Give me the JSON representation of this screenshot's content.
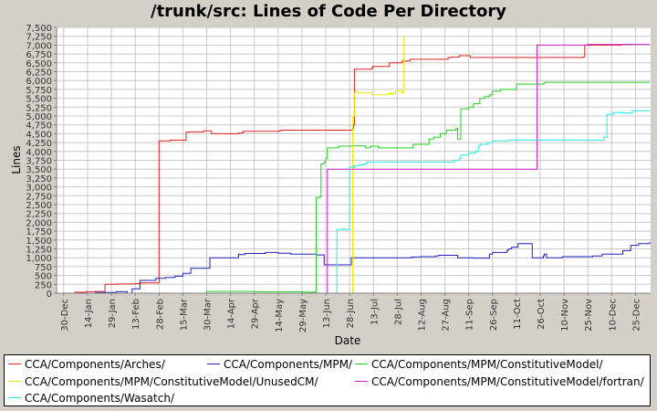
{
  "chart_data": {
    "type": "line",
    "title": "/trunk/src: Lines of Code Per Directory",
    "xlabel": "Date",
    "ylabel": "Lines",
    "ylim": [
      0,
      7500
    ],
    "yticks": [
      "0",
      "250",
      "500",
      "750",
      "1,000",
      "1,250",
      "1,500",
      "1,750",
      "2,000",
      "2,250",
      "2,500",
      "2,750",
      "3,000",
      "3,250",
      "3,500",
      "3,750",
      "4,000",
      "4,250",
      "4,500",
      "4,750",
      "5,000",
      "5,250",
      "5,500",
      "5,750",
      "6,000",
      "6,250",
      "6,500",
      "6,750",
      "7,000",
      "7,250",
      "7,500"
    ],
    "xticks": [
      "30-Dec",
      "14-Jan",
      "29-Jan",
      "13-Feb",
      "28-Feb",
      "15-Mar",
      "30-Mar",
      "14-Apr",
      "29-Apr",
      "14-May",
      "29-May",
      "13-Jun",
      "28-Jun",
      "13-Jul",
      "28-Jul",
      "12-Aug",
      "27-Aug",
      "11-Sep",
      "26-Sep",
      "11-Oct",
      "26-Oct",
      "10-Nov",
      "25-Nov",
      "10-Dec",
      "25-Dec"
    ],
    "xlim_days": [
      -4.5,
      369.5
    ],
    "grid": true,
    "legend_position": "bottom",
    "series": [
      {
        "name": "CCA/Components/Arches/",
        "color": "#e02020",
        "x": [
          0,
          7,
          14,
          20,
          26,
          34,
          45,
          48,
          60,
          67,
          76,
          77,
          78,
          88,
          93,
          110,
          113,
          136,
          137,
          182,
          182.5,
          183,
          194,
          194.5,
          205,
          213,
          218,
          242,
          244,
          249,
          256,
          327,
          328,
          351,
          358
        ],
        "y": [
          0,
          25,
          40,
          50,
          250,
          260,
          270,
          290,
          4300,
          4320,
          4310,
          4540,
          4550,
          4580,
          4500,
          4520,
          4570,
          4590,
          4600,
          4650,
          4750,
          6320,
          6350,
          6400,
          6500,
          6550,
          6600,
          6650,
          6660,
          6700,
          6650,
          6670,
          7000,
          7020,
          7020
        ]
      },
      {
        "name": "CCA/Components/MPM/",
        "color": "#2020c0",
        "x": [
          11,
          20,
          33,
          40,
          43,
          48,
          58,
          64,
          70,
          75,
          80,
          92,
          110,
          111,
          114,
          127,
          135,
          143,
          159,
          164,
          181,
          195,
          219,
          225,
          234,
          236,
          248,
          258,
          268,
          270,
          279,
          280,
          282,
          286,
          295,
          302,
          302.5,
          304,
          314,
          333,
          339,
          352,
          357,
          362,
          369
        ],
        "y": [
          0,
          20,
          40,
          0,
          120,
          360,
          420,
          440,
          480,
          560,
          700,
          1000,
          1100,
          1090,
          1120,
          1150,
          1130,
          1100,
          1080,
          800,
          1000,
          1000,
          1020,
          1030,
          1050,
          1070,
          1000,
          990,
          1100,
          1150,
          1200,
          1250,
          1300,
          1400,
          1000,
          1050,
          1100,
          1000,
          1030,
          1050,
          1100,
          1200,
          1350,
          1400,
          1450
        ]
      },
      {
        "name": "CCA/Components/MPM/ConstitutiveModel/",
        "color": "#20d020",
        "x": [
          60,
          90,
          120,
          150,
          155,
          157,
          159,
          161,
          162,
          164,
          165,
          166,
          173,
          182,
          190,
          193,
          198,
          220,
          230,
          233,
          237,
          241,
          247,
          248,
          250,
          255,
          258,
          262,
          265,
          268,
          270,
          275,
          285,
          302,
          303,
          320,
          369
        ],
        "y": [
          0,
          50,
          40,
          30,
          20,
          30,
          2700,
          2720,
          3650,
          3700,
          3800,
          4100,
          4150,
          4160,
          4100,
          4150,
          4100,
          4200,
          4350,
          4400,
          4500,
          4600,
          4650,
          4350,
          5200,
          5250,
          5350,
          5500,
          5550,
          5600,
          5700,
          5750,
          5900,
          5920,
          5950,
          5950,
          5950
        ]
      },
      {
        "name": "CCA/Components/MPM/ConstitutiveModel/UnusedCM/",
        "color": "#e8e800",
        "x": [
          181,
          182,
          183,
          183.5,
          185,
          194,
          204,
          205,
          206,
          207,
          208,
          209,
          213,
          214
        ],
        "y": [
          0,
          5000,
          5650,
          5700,
          5650,
          5600,
          5620,
          5650,
          5600,
          5640,
          5650,
          5700,
          5650,
          7250
        ]
      },
      {
        "name": "CCA/Components/MPM/ConstitutiveModel/fortran/",
        "color": "#d020d0",
        "x": [
          165,
          166,
          250,
          297,
          298,
          330,
          369
        ],
        "y": [
          0,
          3500,
          3500,
          3500,
          7000,
          7020,
          7020
        ]
      },
      {
        "name": "CCA/Components/Wasatch/",
        "color": "#20e8e8",
        "x": [
          171,
          172,
          176,
          177,
          180,
          183,
          186,
          189,
          191,
          214,
          243,
          246,
          249,
          250,
          255,
          259,
          261,
          262,
          267,
          270,
          280,
          290,
          320,
          340,
          342,
          346,
          352,
          358,
          369
        ],
        "y": [
          0,
          1800,
          1820,
          1800,
          3550,
          3600,
          3620,
          3650,
          3700,
          3700,
          3700,
          3750,
          3800,
          3900,
          3950,
          4000,
          4150,
          4200,
          4250,
          4300,
          4320,
          4320,
          4320,
          4400,
          5050,
          5100,
          5080,
          5150,
          5150
        ]
      }
    ]
  }
}
